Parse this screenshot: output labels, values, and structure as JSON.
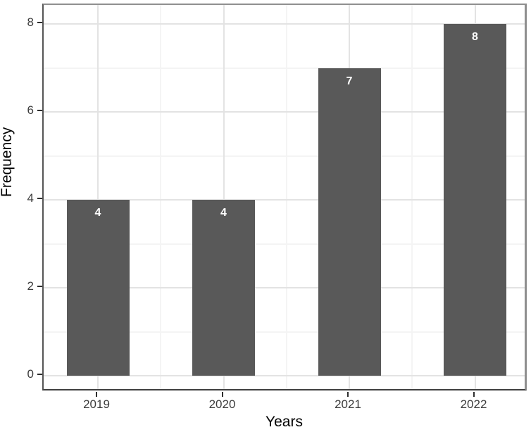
{
  "chart_data": {
    "type": "bar",
    "title": "",
    "categories": [
      "2019",
      "2020",
      "2021",
      "2022"
    ],
    "values": [
      4,
      4,
      7,
      8
    ],
    "bar_labels": [
      "4",
      "4",
      "7",
      "8"
    ],
    "xlabel": "Years",
    "ylabel": "Frequency",
    "ylim": [
      0,
      8
    ],
    "yticks": [
      0,
      2,
      4,
      6,
      8
    ],
    "y_minor_ticks": [
      1,
      3,
      5,
      7
    ],
    "grid": "major and minor, light gray on white (theme_bw style)",
    "legend_position": "none",
    "colors": {
      "bar_fill": "#595959",
      "bar_label_text": "#ffffff",
      "grid_major": "#e3e3e3",
      "grid_minor": "#f4f4f4",
      "axis_text": "#3c3c3c",
      "axis_title": "#000000",
      "tick_mark": "#2e2e2e",
      "background": "#ffffff"
    }
  }
}
